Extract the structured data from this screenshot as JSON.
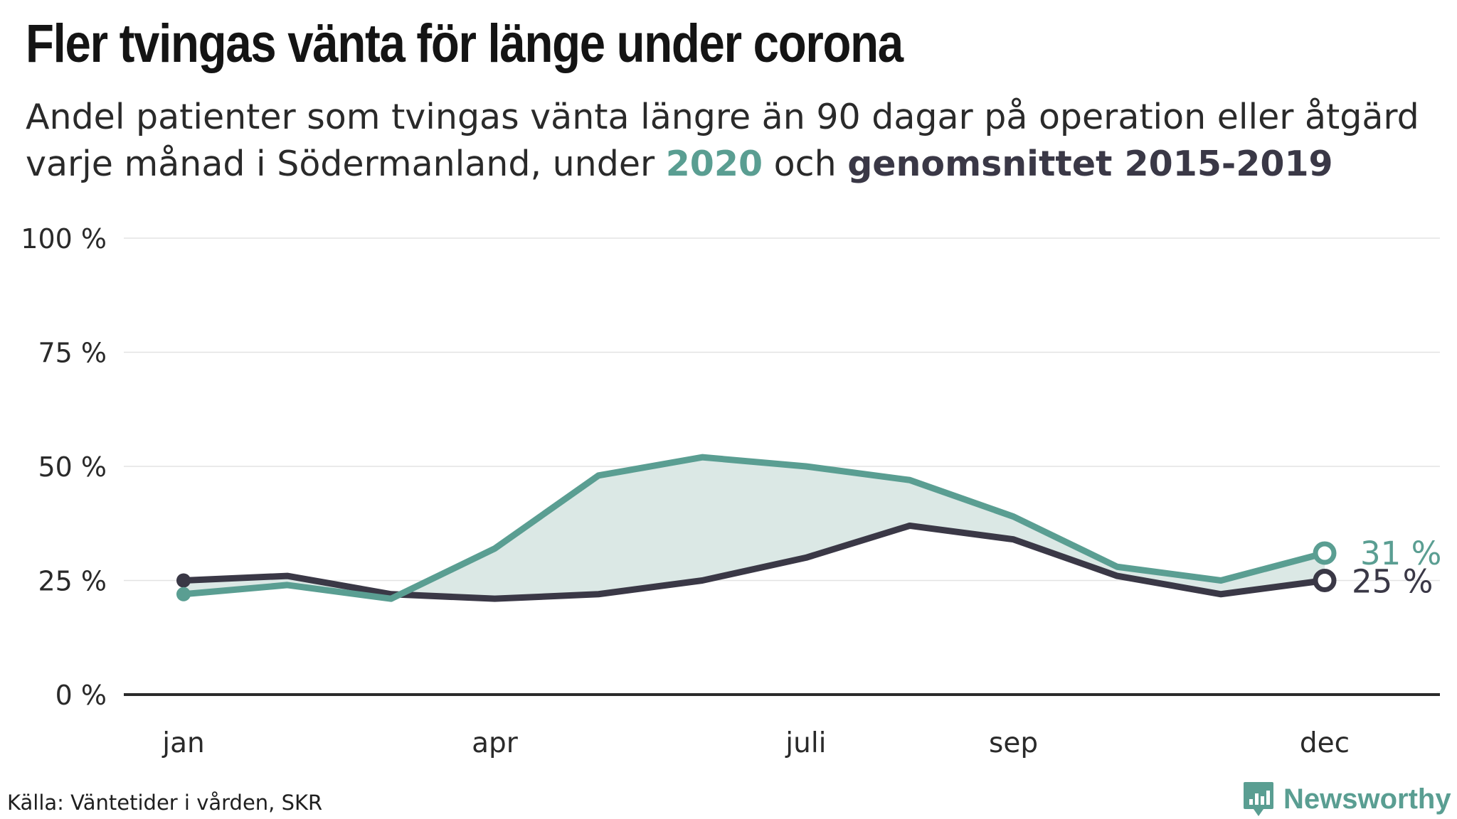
{
  "header": {
    "title": "Fler tvingas vänta för länge under corona",
    "subtitle_part1": "Andel patienter som tvingas vänta längre än 90 dagar på operation eller åtgärd varje månad i Södermanland, under ",
    "subtitle_highlight_2020": "2020",
    "subtitle_part2": " och ",
    "subtitle_highlight_avg": "genomsnittet 2015-2019"
  },
  "footer": {
    "source": "Källa: Väntetider i vården, SKR",
    "brand": "Newsworthy"
  },
  "colors": {
    "series_2020": "#5a9e92",
    "series_avg": "#3a3846",
    "fill": "#dbe8e5",
    "grid": "#e3e3e3",
    "axis": "#2a2a2a",
    "brand": "#5a9e92"
  },
  "chart_data": {
    "type": "line",
    "x": [
      1,
      2,
      3,
      4,
      5,
      6,
      7,
      8,
      9,
      10,
      11,
      12
    ],
    "xticks": [
      {
        "x": 1,
        "label": "jan"
      },
      {
        "x": 4,
        "label": "apr"
      },
      {
        "x": 7,
        "label": "juli"
      },
      {
        "x": 9,
        "label": "sep"
      },
      {
        "x": 12,
        "label": "dec"
      }
    ],
    "yticks": [
      {
        "y": 0,
        "label": "0 %"
      },
      {
        "y": 25,
        "label": "25 %"
      },
      {
        "y": 50,
        "label": "50 %"
      },
      {
        "y": 75,
        "label": "75 %"
      },
      {
        "y": 100,
        "label": "100 %"
      }
    ],
    "ylim": [
      0,
      100
    ],
    "grid": true,
    "series": [
      {
        "name": "genomsnittet 2015-2019",
        "values": [
          25,
          26,
          22,
          21,
          22,
          25,
          30,
          37,
          34,
          26,
          22,
          25
        ],
        "end_label": "25 %"
      },
      {
        "name": "2020",
        "values": [
          22,
          24,
          21,
          32,
          48,
          52,
          50,
          47,
          39,
          28,
          25,
          31
        ],
        "end_label": "31 %"
      }
    ],
    "fill_between": true
  }
}
